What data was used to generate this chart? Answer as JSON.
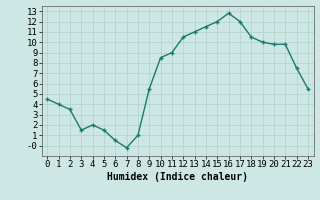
{
  "x": [
    0,
    1,
    2,
    3,
    4,
    5,
    6,
    7,
    8,
    9,
    10,
    11,
    12,
    13,
    14,
    15,
    16,
    17,
    18,
    19,
    20,
    21,
    22,
    23
  ],
  "y": [
    4.5,
    4.0,
    3.5,
    1.5,
    2.0,
    1.5,
    0.5,
    -0.2,
    1.0,
    5.5,
    8.5,
    9.0,
    10.5,
    11.0,
    11.5,
    12.0,
    12.8,
    12.0,
    10.5,
    10.0,
    9.8,
    9.8,
    7.5,
    5.5
  ],
  "line_color": "#1a7a6e",
  "marker": "+",
  "marker_size": 3,
  "xlabel": "Humidex (Indice chaleur)",
  "ylabel": "",
  "xlim": [
    -0.5,
    23.5
  ],
  "ylim": [
    -1,
    13.5
  ],
  "yticks": [
    0,
    1,
    2,
    3,
    4,
    5,
    6,
    7,
    8,
    9,
    10,
    11,
    12,
    13
  ],
  "ytick_labels": [
    "-0",
    "1",
    "2",
    "3",
    "4",
    "5",
    "6",
    "7",
    "8",
    "9",
    "10",
    "11",
    "12",
    "13"
  ],
  "xticks": [
    0,
    1,
    2,
    3,
    4,
    5,
    6,
    7,
    8,
    9,
    10,
    11,
    12,
    13,
    14,
    15,
    16,
    17,
    18,
    19,
    20,
    21,
    22,
    23
  ],
  "bg_color": "#cde8e4",
  "grid_color": "#b0d0cc",
  "label_fontsize": 7,
  "tick_fontsize": 6.5,
  "line_width": 1.0
}
